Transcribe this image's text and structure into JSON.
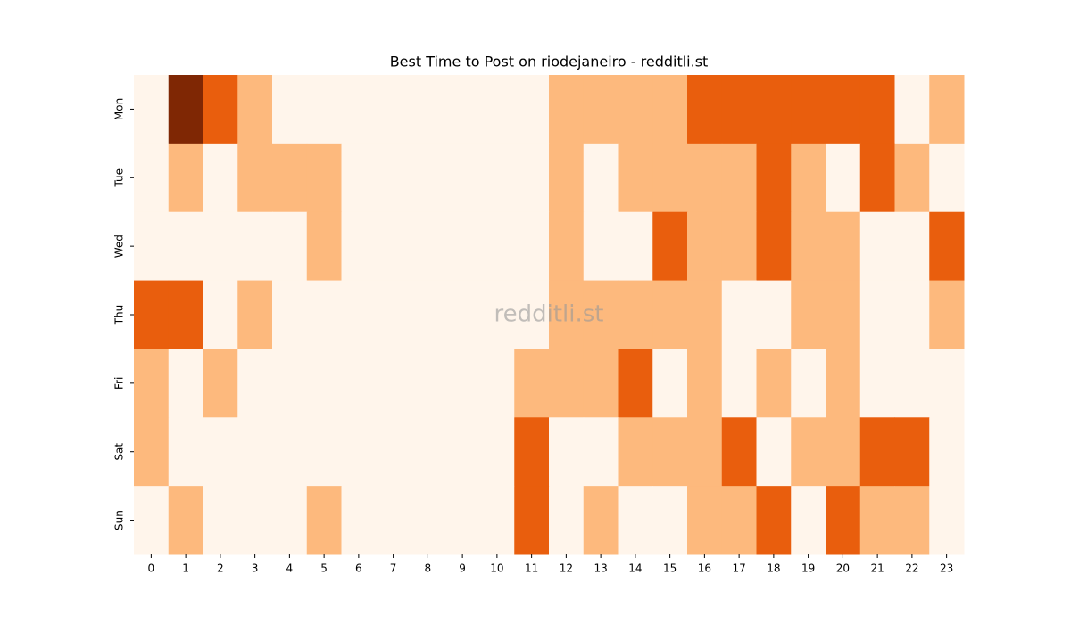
{
  "chart_data": {
    "type": "heatmap",
    "title": "Best Time to Post on riodejaneiro - redditli.st",
    "annotation": "redditli.st",
    "x": [
      0,
      1,
      2,
      3,
      4,
      5,
      6,
      7,
      8,
      9,
      10,
      11,
      12,
      13,
      14,
      15,
      16,
      17,
      18,
      19,
      20,
      21,
      22,
      23
    ],
    "categories": [
      "Mon",
      "Tue",
      "Wed",
      "Thu",
      "Fri",
      "Sat",
      "Sun"
    ],
    "values": [
      [
        0,
        3,
        2,
        1,
        0,
        0,
        0,
        0,
        0,
        0,
        0,
        0,
        1,
        1,
        1,
        1,
        2,
        2,
        2,
        2,
        2,
        2,
        0,
        1
      ],
      [
        0,
        1,
        0,
        1,
        1,
        1,
        0,
        0,
        0,
        0,
        0,
        0,
        1,
        0,
        1,
        1,
        1,
        1,
        2,
        1,
        0,
        2,
        1,
        0
      ],
      [
        0,
        0,
        0,
        0,
        0,
        1,
        0,
        0,
        0,
        0,
        0,
        0,
        1,
        0,
        0,
        2,
        1,
        1,
        2,
        1,
        1,
        0,
        0,
        2
      ],
      [
        2,
        2,
        0,
        1,
        0,
        0,
        0,
        0,
        0,
        0,
        0,
        0,
        1,
        1,
        1,
        1,
        1,
        0,
        0,
        1,
        1,
        0,
        0,
        1
      ],
      [
        1,
        0,
        1,
        0,
        0,
        0,
        0,
        0,
        0,
        0,
        0,
        1,
        1,
        1,
        2,
        0,
        1,
        0,
        1,
        0,
        1,
        0,
        0,
        0
      ],
      [
        1,
        0,
        0,
        0,
        0,
        0,
        0,
        0,
        0,
        0,
        0,
        2,
        0,
        0,
        1,
        1,
        1,
        2,
        0,
        1,
        1,
        2,
        2,
        0
      ],
      [
        0,
        1,
        0,
        0,
        0,
        1,
        0,
        0,
        0,
        0,
        0,
        2,
        0,
        1,
        0,
        0,
        1,
        1,
        2,
        0,
        2,
        1,
        1,
        0
      ]
    ],
    "colors": [
      "#fff5eb",
      "#fdb97d",
      "#e95e0d",
      "#7f2704"
    ],
    "vmin": 0,
    "vmax": 3
  }
}
